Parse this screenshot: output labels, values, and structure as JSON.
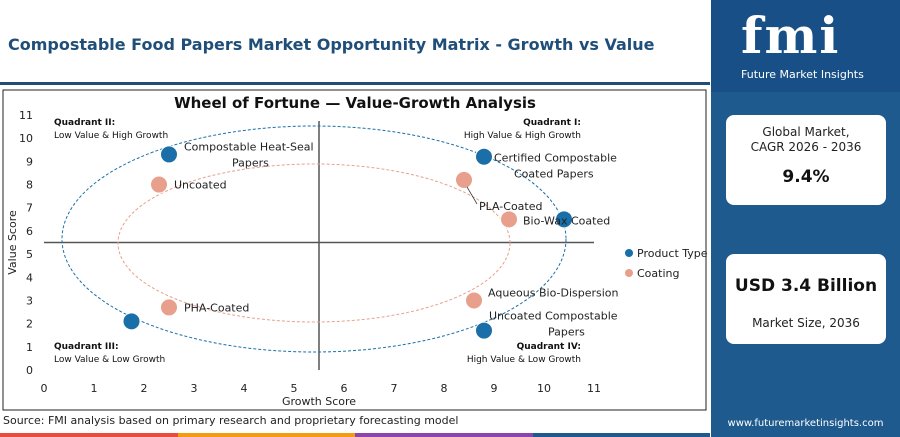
{
  "header": {
    "title": "Compostable Food Papers Market Opportunity Matrix - Growth vs Value",
    "source": "Source: FMI analysis based on primary research and proprietary forecasting model"
  },
  "brand": {
    "logo_text": "fmi",
    "logo_subtitle": "Future Market Insights",
    "url": "www.futuremarketinsights.com",
    "primary_color": "#1e5a8e",
    "accent_colors": [
      "#e74c3c",
      "#f39c12",
      "#8e44ad",
      "#1e5a8e"
    ]
  },
  "sidebar": {
    "card1_label_line1": "Global Market,",
    "card1_label_line2": "CAGR 2026 - 2036",
    "card1_value": "9.4%",
    "card2_value": "USD 3.4 Billion",
    "card2_label": "Market Size, 2036"
  },
  "chart_data": {
    "type": "scatter",
    "title": "Wheel of Fortune — Value-Growth Analysis",
    "xlabel": "Growth Score",
    "ylabel": "Value Score",
    "xlim": [
      0,
      11
    ],
    "ylim": [
      0,
      11
    ],
    "xticks": [
      0,
      1,
      2,
      3,
      4,
      5,
      6,
      7,
      8,
      9,
      10,
      11
    ],
    "yticks": [
      0,
      1,
      2,
      3,
      4,
      5,
      6,
      7,
      8,
      9,
      10,
      11
    ],
    "divider_x": 5.5,
    "divider_y": 5.5,
    "quadrants": [
      {
        "title": "Quadrant II:",
        "subtitle": "Low Value & High Growth",
        "position": "top-left"
      },
      {
        "title": "Quadrant I:",
        "subtitle": "High Value & High Growth",
        "position": "top-right"
      },
      {
        "title": "Quadrant III:",
        "subtitle": "Low Value & Low Growth",
        "position": "bottom-left"
      },
      {
        "title": "Quadrant IV:",
        "subtitle": "High Value & Low Growth",
        "position": "bottom-right"
      }
    ],
    "legend": {
      "position": "right",
      "items": [
        "Product Type",
        "Coating"
      ]
    },
    "series": [
      {
        "name": "Product Type",
        "color": "#1a6fa8",
        "points": [
          {
            "x": 2.5,
            "y": 9.3,
            "label": "Compostable Heat-Seal Papers"
          },
          {
            "x": 8.8,
            "y": 9.2,
            "label": "Certified Compostable Coated Papers"
          },
          {
            "x": 10.4,
            "y": 6.5,
            "label": "Bio-Wax Coated"
          },
          {
            "x": 1.75,
            "y": 2.1,
            "label": ""
          },
          {
            "x": 8.8,
            "y": 1.7,
            "label": "Uncoated Compostable Papers"
          }
        ]
      },
      {
        "name": "Coating",
        "color": "#e8a08c",
        "points": [
          {
            "x": 2.3,
            "y": 8.0,
            "label": "Uncoated"
          },
          {
            "x": 8.4,
            "y": 8.2,
            "label": "PLA-Coated"
          },
          {
            "x": 9.3,
            "y": 6.5,
            "label": ""
          },
          {
            "x": 2.5,
            "y": 2.7,
            "label": "PHA-Coated"
          },
          {
            "x": 8.6,
            "y": 3.0,
            "label": "Aqueous Bio-Dispersion"
          }
        ]
      }
    ]
  }
}
